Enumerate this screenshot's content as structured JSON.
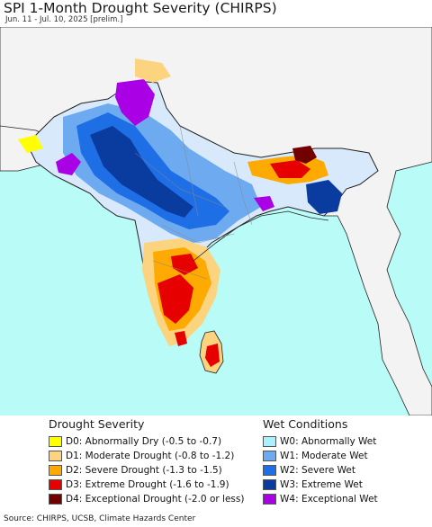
{
  "header": {
    "title": "SPI 1-Month Drought Severity (CHIRPS)",
    "subtitle": "Jun. 11 - Jul. 10, 2025 [prelim.]"
  },
  "map": {
    "colors": {
      "ocean": "#b8fbf7",
      "land_neutral": "#f3f3f3",
      "border": "#222222",
      "state_border": "#888888"
    }
  },
  "legend": {
    "drought": {
      "title": "Drought Severity",
      "items": [
        {
          "label": "D0: Abnormally Dry (-0.5 to -0.7)",
          "color": "#ffff00"
        },
        {
          "label": "D1: Moderate Drought (-0.8 to -1.2)",
          "color": "#fcd37f"
        },
        {
          "label": "D2: Severe Drought (-1.3 to -1.5)",
          "color": "#ffaa00"
        },
        {
          "label": "D3: Extreme Drought (-1.6 to -1.9)",
          "color": "#e60000"
        },
        {
          "label": "D4: Exceptional Drought (-2.0 or less)",
          "color": "#730000"
        }
      ]
    },
    "wet": {
      "title": "Wet Conditions",
      "items": [
        {
          "label": "W0: Abnormally Wet",
          "color": "#aaf0ff"
        },
        {
          "label": "W1: Moderate Wet",
          "color": "#6eaaf0"
        },
        {
          "label": "W2: Severe Wet",
          "color": "#1e6ee6"
        },
        {
          "label": "W3: Extreme Wet",
          "color": "#0a3ca0"
        },
        {
          "label": "W4: Exceptional Wet",
          "color": "#aa00e6"
        }
      ]
    }
  },
  "footer": {
    "source": "Source: CHIRPS, UCSB, Climate Hazards Center"
  }
}
